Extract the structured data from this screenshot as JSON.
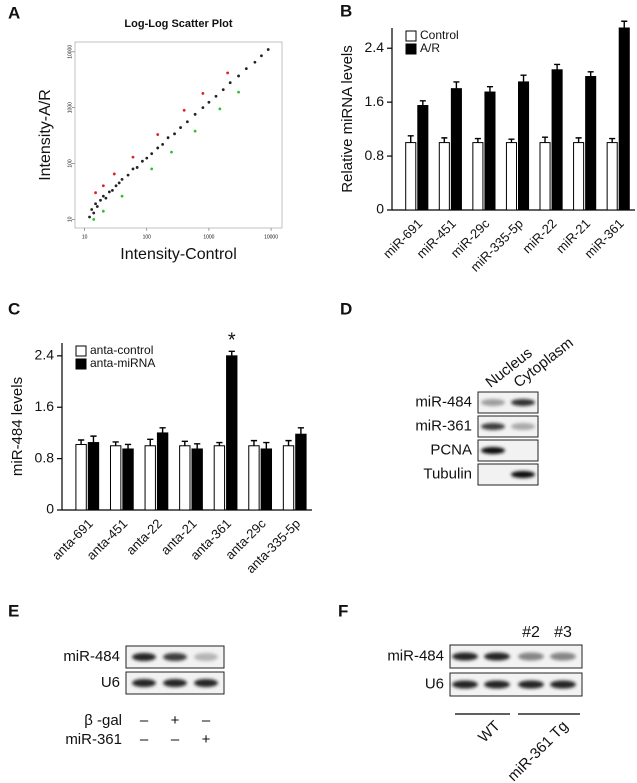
{
  "chart_data": [
    {
      "panel": "A",
      "type": "scatter",
      "title": "Log-Log Scatter Plot",
      "xlabel": "Intensity-Control",
      "ylabel": "Intensity-A/R",
      "log_scale": true,
      "xlim": [
        7,
        15000
      ],
      "ylim": [
        7,
        15000
      ],
      "xticks": [
        10,
        100,
        1000,
        10000
      ],
      "yticks": [
        10,
        100,
        1000,
        10000
      ],
      "series": [
        {
          "color": "#222222",
          "x": [
            12,
            13,
            14,
            15,
            16,
            18,
            20,
            22,
            25,
            28,
            32,
            36,
            40,
            50,
            60,
            70,
            85,
            100,
            120,
            150,
            180,
            220,
            280,
            350,
            450,
            600,
            800,
            1000,
            1300,
            1700,
            2200,
            3000,
            4000,
            5500,
            7000,
            9000
          ],
          "values": [
            11,
            15,
            13,
            19,
            17,
            22,
            26,
            24,
            31,
            33,
            40,
            45,
            52,
            62,
            80,
            85,
            110,
            125,
            150,
            190,
            220,
            290,
            340,
            440,
            560,
            760,
            1000,
            1250,
            1600,
            2100,
            2800,
            3700,
            5000,
            6500,
            8500,
            11000
          ]
        },
        {
          "color": "#e02020",
          "x": [
            15,
            20,
            30,
            60,
            150,
            400,
            800,
            2000
          ],
          "values": [
            30,
            40,
            65,
            130,
            330,
            900,
            1800,
            4200
          ]
        },
        {
          "color": "#30c030",
          "x": [
            14,
            20,
            40,
            120,
            250,
            600,
            1500,
            3000
          ],
          "values": [
            10,
            14,
            26,
            80,
            160,
            380,
            950,
            1900
          ]
        }
      ]
    },
    {
      "panel": "B",
      "type": "bar",
      "ylabel": "Relative miRNA levels",
      "legend": "upper left",
      "categories": [
        "miR-691",
        "miR-451",
        "miR-29c",
        "miR-335-5p",
        "miR-22",
        "miR-21",
        "miR-361"
      ],
      "ylim": [
        0,
        2.7
      ],
      "yticks": [
        0,
        0.8,
        1.6,
        2.4
      ],
      "series": [
        {
          "name": "Control",
          "color": "#ffffff",
          "values": [
            1.0,
            1.0,
            1.0,
            1.0,
            1.0,
            1.0,
            1.0
          ],
          "errors": [
            0.1,
            0.07,
            0.06,
            0.05,
            0.08,
            0.07,
            0.06
          ]
        },
        {
          "name": "A/R",
          "color": "#000000",
          "values": [
            1.55,
            1.8,
            1.75,
            1.9,
            2.08,
            1.98,
            2.7
          ],
          "errors": [
            0.07,
            0.1,
            0.08,
            0.1,
            0.08,
            0.07,
            0.1
          ]
        }
      ]
    },
    {
      "panel": "C",
      "type": "bar",
      "ylabel": "miR-484 levels",
      "legend": "upper left",
      "categories": [
        "anta-691",
        "anta-451",
        "anta-22",
        "anta-21",
        "anta-361",
        "anta-29c",
        "anta-335-5p"
      ],
      "ylim": [
        0,
        2.6
      ],
      "yticks": [
        0,
        0.8,
        1.6,
        2.4
      ],
      "annotations": [
        {
          "text": "*",
          "category": "anta-361"
        }
      ],
      "series": [
        {
          "name": "anta-control",
          "color": "#ffffff",
          "values": [
            1.02,
            1.0,
            1.0,
            1.0,
            1.0,
            1.0,
            1.0
          ],
          "errors": [
            0.07,
            0.06,
            0.1,
            0.07,
            0.05,
            0.08,
            0.08
          ]
        },
        {
          "name": "anta-miRNA",
          "color": "#000000",
          "values": [
            1.05,
            0.95,
            1.2,
            0.95,
            2.4,
            0.95,
            1.18
          ],
          "errors": [
            0.1,
            0.07,
            0.08,
            0.08,
            0.07,
            0.1,
            0.1
          ]
        }
      ]
    }
  ],
  "blots": [
    {
      "panel": "D",
      "columns": [
        "Nucleus",
        "Cytoplasm"
      ],
      "rows": [
        "miR-484",
        "miR-361",
        "PCNA",
        "Tubulin"
      ]
    },
    {
      "panel": "E",
      "rows": [
        "miR-484",
        "U6"
      ],
      "conditions": [
        {
          "label": "β -gal",
          "signs": [
            "–",
            "+",
            "–"
          ]
        },
        {
          "label": "miR-361",
          "signs": [
            "–",
            "–",
            "+"
          ]
        }
      ]
    },
    {
      "panel": "F",
      "rows": [
        "miR-484",
        "U6"
      ],
      "lane_labels": [
        "#2",
        "#3"
      ],
      "groups": [
        "WT",
        "miR-361 Tg"
      ]
    }
  ]
}
